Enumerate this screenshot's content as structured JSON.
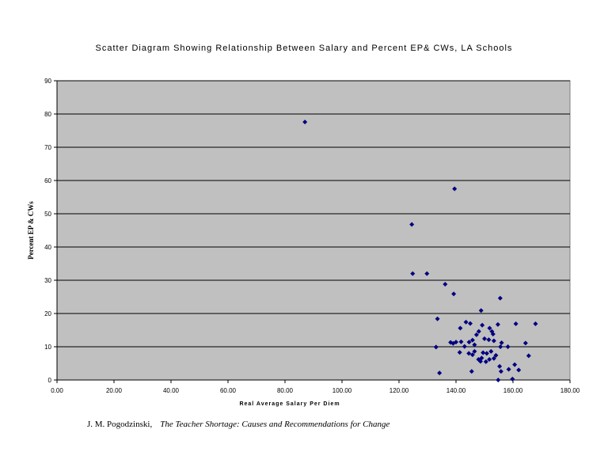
{
  "chart_data": {
    "type": "scatter",
    "title": "Scatter Diagram Showing Relationship Between Salary and Percent EP& CWs, LA Schools",
    "xlabel": "Real Average Salary Per Diem",
    "ylabel": "Percent EP & CWs",
    "xlim": [
      0,
      180
    ],
    "ylim": [
      0,
      90
    ],
    "x_ticks": [
      "0.00",
      "20.00",
      "40.00",
      "60.00",
      "80.00",
      "100.00",
      "120.00",
      "140.00",
      "160.00",
      "180.00"
    ],
    "y_ticks": [
      "0",
      "10",
      "20",
      "30",
      "40",
      "50",
      "60",
      "70",
      "80",
      "90"
    ],
    "grid": "horizontal",
    "background": "#c0c0c0",
    "marker_color": "#000080",
    "points": [
      [
        87.0,
        77.6
      ],
      [
        139.5,
        57.5
      ],
      [
        124.5,
        46.8
      ],
      [
        124.8,
        32.0
      ],
      [
        129.8,
        32.0
      ],
      [
        136.2,
        28.8
      ],
      [
        139.2,
        25.9
      ],
      [
        155.5,
        24.6
      ],
      [
        148.8,
        20.9
      ],
      [
        133.5,
        18.4
      ],
      [
        167.9,
        16.9
      ],
      [
        161.0,
        16.9
      ],
      [
        154.7,
        16.7
      ],
      [
        143.5,
        17.4
      ],
      [
        145.0,
        17.0
      ],
      [
        141.5,
        15.6
      ],
      [
        149.2,
        16.5
      ],
      [
        151.8,
        15.6
      ],
      [
        152.6,
        14.6
      ],
      [
        148.0,
        14.6
      ],
      [
        153.0,
        13.8
      ],
      [
        147.2,
        13.6
      ],
      [
        138.1,
        11.3
      ],
      [
        139.0,
        11.0
      ],
      [
        140.0,
        11.4
      ],
      [
        141.8,
        11.5
      ],
      [
        144.6,
        11.4
      ],
      [
        145.8,
        12.0
      ],
      [
        150.0,
        12.4
      ],
      [
        151.5,
        12.1
      ],
      [
        153.3,
        11.8
      ],
      [
        156.0,
        11.2
      ],
      [
        164.4,
        11.1
      ],
      [
        146.5,
        10.6
      ],
      [
        143.0,
        10.1
      ],
      [
        155.6,
        10.0
      ],
      [
        158.2,
        10.0
      ],
      [
        133.0,
        9.9
      ],
      [
        141.3,
        8.3
      ],
      [
        144.5,
        8.0
      ],
      [
        145.8,
        7.6
      ],
      [
        146.5,
        8.6
      ],
      [
        149.5,
        8.2
      ],
      [
        150.8,
        8.0
      ],
      [
        152.3,
        8.6
      ],
      [
        154.0,
        7.4
      ],
      [
        149.0,
        6.6
      ],
      [
        147.9,
        6.2
      ],
      [
        148.6,
        5.6
      ],
      [
        150.5,
        5.5
      ],
      [
        151.7,
        6.2
      ],
      [
        153.3,
        6.5
      ],
      [
        165.5,
        7.3
      ],
      [
        155.3,
        4.1
      ],
      [
        155.8,
        2.6
      ],
      [
        158.5,
        3.2
      ],
      [
        160.6,
        4.6
      ],
      [
        162.0,
        3.0
      ],
      [
        145.5,
        2.6
      ],
      [
        134.2,
        2.1
      ],
      [
        154.8,
        0.0
      ],
      [
        159.8,
        0.3
      ]
    ]
  },
  "footer": {
    "author": "J. M. Pogodzinski,",
    "book_title": "The Teacher Shortage: Causes and Recommendations for Change"
  }
}
